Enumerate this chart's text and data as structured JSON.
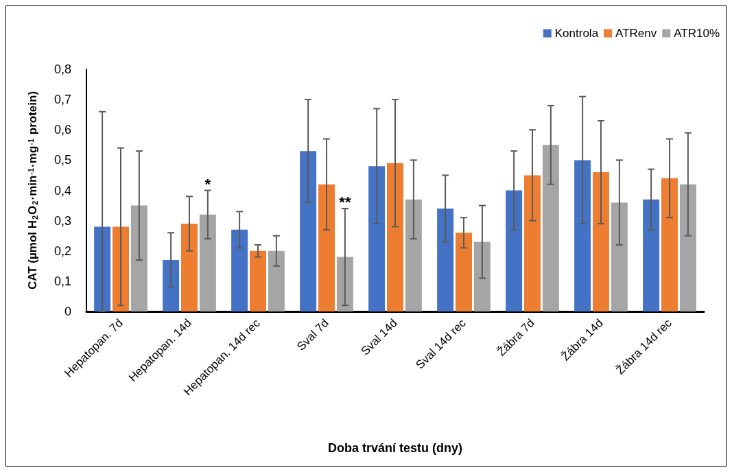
{
  "chart_data": {
    "type": "bar",
    "xlabel": "Doba trvání testu (dny)",
    "ylabel": "CAT (µmol H$_{2}$O$_{2}$·min$^{-1}$·mg$^{-1}$ protein)",
    "categories": [
      "Hepatopan. 7d",
      "Hepatopan. 14d",
      "Hepatopan. 14d rec",
      "Sval 7d",
      "Sval 14d",
      "Sval 14d rec",
      "Žábra 7d",
      "Žábra 14d",
      "Žábra 14d rec"
    ],
    "series": [
      {
        "name": "Kontrola",
        "color": "#4472c4",
        "values": [
          0.28,
          0.17,
          0.27,
          0.53,
          0.48,
          0.34,
          0.4,
          0.5,
          0.37
        ],
        "errors": [
          [
            0,
            0.66
          ],
          [
            0.08,
            0.26
          ],
          [
            0.21,
            0.33
          ],
          [
            0.36,
            0.7
          ],
          [
            0.29,
            0.67
          ],
          [
            0.23,
            0.45
          ],
          [
            0.27,
            0.53
          ],
          [
            0.29,
            0.71
          ],
          [
            0.27,
            0.47
          ]
        ]
      },
      {
        "name": "ATRenv",
        "color": "#ed7d31",
        "values": [
          0.28,
          0.29,
          0.2,
          0.42,
          0.49,
          0.26,
          0.45,
          0.46,
          0.44
        ],
        "errors": [
          [
            0.02,
            0.54
          ],
          [
            0.2,
            0.38
          ],
          [
            0.18,
            0.22
          ],
          [
            0.27,
            0.57
          ],
          [
            0.28,
            0.7
          ],
          [
            0.21,
            0.31
          ],
          [
            0.3,
            0.6
          ],
          [
            0.29,
            0.63
          ],
          [
            0.31,
            0.57
          ]
        ]
      },
      {
        "name": "ATR10%",
        "color": "#a5a5a5",
        "values": [
          0.35,
          0.32,
          0.2,
          0.18,
          0.37,
          0.23,
          0.55,
          0.36,
          0.42
        ],
        "errors": [
          [
            0.17,
            0.53
          ],
          [
            0.24,
            0.4
          ],
          [
            0.15,
            0.25
          ],
          [
            0.02,
            0.34
          ],
          [
            0.24,
            0.5
          ],
          [
            0.11,
            0.35
          ],
          [
            0.42,
            0.68
          ],
          [
            0.22,
            0.5
          ],
          [
            0.25,
            0.59
          ]
        ]
      }
    ],
    "ylim": [
      0,
      0.8
    ],
    "yticks": [
      {
        "value": 0,
        "label": "0"
      },
      {
        "value": 0.1,
        "label": "0,1"
      },
      {
        "value": 0.2,
        "label": "0,2"
      },
      {
        "value": 0.3,
        "label": "0,3"
      },
      {
        "value": 0.4,
        "label": "0,4"
      },
      {
        "value": 0.5,
        "label": "0,5"
      },
      {
        "value": 0.6,
        "label": "0,6"
      },
      {
        "value": 0.7,
        "label": "0,7"
      },
      {
        "value": 0.8,
        "label": "0,8"
      }
    ],
    "grid": false,
    "legend": "top right",
    "annotations": [
      {
        "text": "*",
        "x": "Hepatopan. 14d",
        "y": 0.32
      },
      {
        "text": "**",
        "x": "Sval 7d",
        "y": 0.34
      }
    ]
  }
}
